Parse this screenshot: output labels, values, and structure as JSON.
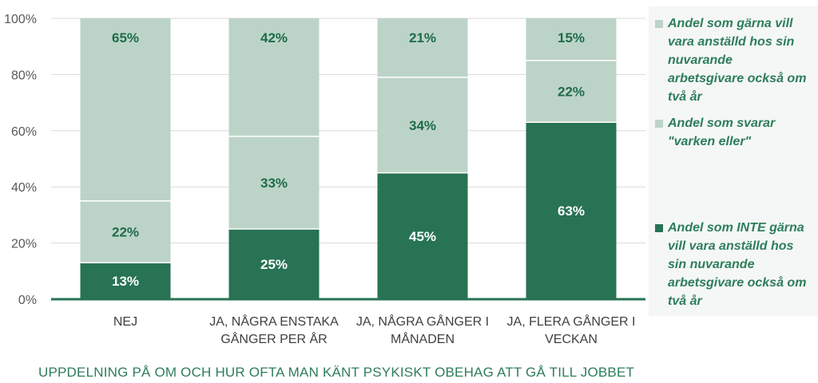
{
  "chart_data": {
    "type": "bar",
    "stacked": true,
    "categories": [
      [
        "NEJ"
      ],
      [
        "JA, NÅGRA ENSTAKA",
        "GÅNGER PER ÅR"
      ],
      [
        "JA, NÅGRA GÅNGER I",
        "MÅNADEN"
      ],
      [
        "JA, FLERA GÅNGER I",
        "VECKAN"
      ]
    ],
    "series": [
      {
        "name": "Andel som INTE gärna vill vara anställd hos sin nuvarande arbetsgivare också om två år",
        "values": [
          13,
          25,
          45,
          63
        ],
        "labels": [
          "13%",
          "25%",
          "45%",
          "63%"
        ],
        "color": "#277354",
        "label_color": "#ffffff"
      },
      {
        "name": "Andel som svarar \"varken eller\"",
        "values": [
          22,
          33,
          34,
          22
        ],
        "labels": [
          "22%",
          "33%",
          "34%",
          "22%"
        ],
        "color": "#bcd4c7",
        "label_color": "#1e6b4c"
      },
      {
        "name": "Andel som gärna vill vara anställd hos sin nuvarande arbetsgivare också om två år",
        "values": [
          65,
          42,
          21,
          15
        ],
        "labels": [
          "65%",
          "42%",
          "21%",
          "15%"
        ],
        "color": "#bcd4c7",
        "label_color": "#1e6b4c"
      }
    ],
    "y_ticks": [
      "0%",
      "20%",
      "40%",
      "60%",
      "80%",
      "100%"
    ],
    "ylim": [
      0,
      100
    ],
    "xlabel": "UPPDELNING PÅ OM OCH HUR OFTA MAN KÄNT PSYKISKT OBEHAG ATT GÅ TILL JOBBET",
    "grid": true,
    "legend_position": "right"
  },
  "legend": [
    {
      "lines": [
        "Andel som gärna vill",
        "vara anställd hos sin",
        "nuvarande",
        "arbetsgivare också om",
        "två år"
      ],
      "color": "#bcd4c7"
    },
    {
      "lines": [
        "Andel som svarar",
        "\"varken eller\""
      ],
      "color": "#bcd4c7"
    },
    {
      "lines": [
        "Andel som INTE gärna",
        "vill vara anställd hos",
        "sin nuvarande",
        "arbetsgivare också om",
        "två år"
      ],
      "color": "#277354"
    }
  ]
}
